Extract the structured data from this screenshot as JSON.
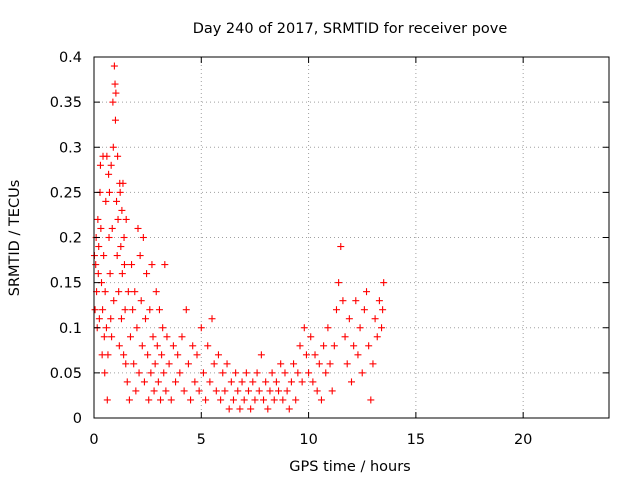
{
  "chart_data": {
    "type": "scatter",
    "title": "Day 240 of 2017, SRMTID for receiver pove",
    "xlabel": "GPS time / hours",
    "ylabel": "SRMTID / TECUs",
    "xlim": [
      0,
      24
    ],
    "ylim": [
      0,
      0.4
    ],
    "xticks": [
      0,
      5,
      10,
      15,
      20
    ],
    "xtick_labels": [
      "0",
      "5",
      "10",
      "15",
      "20"
    ],
    "yticks": [
      0,
      0.05,
      0.1,
      0.15,
      0.2,
      0.25,
      0.3,
      0.35,
      0.4
    ],
    "ytick_labels": [
      "0",
      "0.05",
      "0.1",
      "0.15",
      "0.2",
      "0.25",
      "0.3",
      "0.35",
      "0.4"
    ],
    "grid": true,
    "marker": "plus",
    "marker_color": "#ff0000",
    "series": [
      {
        "name": "SRMTID",
        "points": [
          [
            0.02,
            0.18
          ],
          [
            0.05,
            0.12
          ],
          [
            0.08,
            0.17
          ],
          [
            0.1,
            0.2
          ],
          [
            0.12,
            0.14
          ],
          [
            0.15,
            0.1
          ],
          [
            0.18,
            0.22
          ],
          [
            0.2,
            0.16
          ],
          [
            0.22,
            0.19
          ],
          [
            0.25,
            0.11
          ],
          [
            0.28,
            0.25
          ],
          [
            0.3,
            0.28
          ],
          [
            0.32,
            0.21
          ],
          [
            0.35,
            0.15
          ],
          [
            0.38,
            0.07
          ],
          [
            0.4,
            0.12
          ],
          [
            0.42,
            0.29
          ],
          [
            0.45,
            0.18
          ],
          [
            0.48,
            0.09
          ],
          [
            0.5,
            0.05
          ],
          [
            0.52,
            0.14
          ],
          [
            0.55,
            0.24
          ],
          [
            0.58,
            0.1
          ],
          [
            0.6,
            0.29
          ],
          [
            0.62,
            0.02
          ],
          [
            0.65,
            0.07
          ],
          [
            0.68,
            0.27
          ],
          [
            0.7,
            0.2
          ],
          [
            0.72,
            0.25
          ],
          [
            0.75,
            0.16
          ],
          [
            0.78,
            0.11
          ],
          [
            0.8,
            0.28
          ],
          [
            0.82,
            0.09
          ],
          [
            0.85,
            0.21
          ],
          [
            0.88,
            0.35
          ],
          [
            0.9,
            0.3
          ],
          [
            0.92,
            0.13
          ],
          [
            0.95,
            0.39
          ],
          [
            0.98,
            0.37
          ],
          [
            1.0,
            0.33
          ],
          [
            1.02,
            0.36
          ],
          [
            1.05,
            0.24
          ],
          [
            1.08,
            0.18
          ],
          [
            1.1,
            0.29
          ],
          [
            1.12,
            0.22
          ],
          [
            1.15,
            0.14
          ],
          [
            1.18,
            0.08
          ],
          [
            1.2,
            0.26
          ],
          [
            1.22,
            0.25
          ],
          [
            1.25,
            0.19
          ],
          [
            1.28,
            0.11
          ],
          [
            1.3,
            0.23
          ],
          [
            1.32,
            0.16
          ],
          [
            1.35,
            0.26
          ],
          [
            1.38,
            0.07
          ],
          [
            1.4,
            0.2
          ],
          [
            1.42,
            0.17
          ],
          [
            1.45,
            0.12
          ],
          [
            1.48,
            0.06
          ],
          [
            1.5,
            0.22
          ],
          [
            1.55,
            0.04
          ],
          [
            1.6,
            0.14
          ],
          [
            1.65,
            0.02
          ],
          [
            1.7,
            0.09
          ],
          [
            1.75,
            0.17
          ],
          [
            1.8,
            0.12
          ],
          [
            1.85,
            0.06
          ],
          [
            1.9,
            0.14
          ],
          [
            1.95,
            0.03
          ],
          [
            2.0,
            0.1
          ],
          [
            2.05,
            0.21
          ],
          [
            2.1,
            0.05
          ],
          [
            2.15,
            0.18
          ],
          [
            2.2,
            0.13
          ],
          [
            2.25,
            0.08
          ],
          [
            2.3,
            0.2
          ],
          [
            2.35,
            0.04
          ],
          [
            2.4,
            0.11
          ],
          [
            2.45,
            0.16
          ],
          [
            2.5,
            0.07
          ],
          [
            2.55,
            0.02
          ],
          [
            2.6,
            0.12
          ],
          [
            2.65,
            0.05
          ],
          [
            2.7,
            0.17
          ],
          [
            2.75,
            0.09
          ],
          [
            2.8,
            0.03
          ],
          [
            2.85,
            0.06
          ],
          [
            2.9,
            0.14
          ],
          [
            2.95,
            0.08
          ],
          [
            3.0,
            0.04
          ],
          [
            3.05,
            0.12
          ],
          [
            3.1,
            0.02
          ],
          [
            3.15,
            0.07
          ],
          [
            3.2,
            0.1
          ],
          [
            3.25,
            0.05
          ],
          [
            3.3,
            0.17
          ],
          [
            3.35,
            0.03
          ],
          [
            3.4,
            0.09
          ],
          [
            3.5,
            0.06
          ],
          [
            3.6,
            0.02
          ],
          [
            3.7,
            0.08
          ],
          [
            3.8,
            0.04
          ],
          [
            3.9,
            0.07
          ],
          [
            4.0,
            0.05
          ],
          [
            4.1,
            0.09
          ],
          [
            4.2,
            0.03
          ],
          [
            4.3,
            0.12
          ],
          [
            4.4,
            0.06
          ],
          [
            4.5,
            0.02
          ],
          [
            4.6,
            0.08
          ],
          [
            4.7,
            0.04
          ],
          [
            4.8,
            0.07
          ],
          [
            4.9,
            0.03
          ],
          [
            5.0,
            0.1
          ],
          [
            5.1,
            0.05
          ],
          [
            5.2,
            0.02
          ],
          [
            5.3,
            0.08
          ],
          [
            5.4,
            0.04
          ],
          [
            5.5,
            0.11
          ],
          [
            5.6,
            0.06
          ],
          [
            5.7,
            0.03
          ],
          [
            5.8,
            0.07
          ],
          [
            5.9,
            0.02
          ],
          [
            6.0,
            0.05
          ],
          [
            6.1,
            0.03
          ],
          [
            6.2,
            0.06
          ],
          [
            6.3,
            0.01
          ],
          [
            6.4,
            0.04
          ],
          [
            6.5,
            0.02
          ],
          [
            6.6,
            0.05
          ],
          [
            6.7,
            0.03
          ],
          [
            6.8,
            0.01
          ],
          [
            6.9,
            0.04
          ],
          [
            7.0,
            0.02
          ],
          [
            7.1,
            0.05
          ],
          [
            7.2,
            0.03
          ],
          [
            7.3,
            0.01
          ],
          [
            7.4,
            0.04
          ],
          [
            7.5,
            0.02
          ],
          [
            7.6,
            0.05
          ],
          [
            7.7,
            0.03
          ],
          [
            7.8,
            0.07
          ],
          [
            7.9,
            0.02
          ],
          [
            8.0,
            0.04
          ],
          [
            8.1,
            0.01
          ],
          [
            8.2,
            0.03
          ],
          [
            8.3,
            0.05
          ],
          [
            8.4,
            0.02
          ],
          [
            8.5,
            0.04
          ],
          [
            8.6,
            0.03
          ],
          [
            8.7,
            0.06
          ],
          [
            8.8,
            0.02
          ],
          [
            8.9,
            0.05
          ],
          [
            9.0,
            0.03
          ],
          [
            9.1,
            0.01
          ],
          [
            9.2,
            0.04
          ],
          [
            9.3,
            0.06
          ],
          [
            9.4,
            0.02
          ],
          [
            9.5,
            0.05
          ],
          [
            9.6,
            0.08
          ],
          [
            9.7,
            0.04
          ],
          [
            9.8,
            0.1
          ],
          [
            9.9,
            0.07
          ],
          [
            10.0,
            0.05
          ],
          [
            10.1,
            0.09
          ],
          [
            10.2,
            0.04
          ],
          [
            10.3,
            0.07
          ],
          [
            10.4,
            0.03
          ],
          [
            10.5,
            0.06
          ],
          [
            10.6,
            0.02
          ],
          [
            10.7,
            0.08
          ],
          [
            10.8,
            0.05
          ],
          [
            10.9,
            0.1
          ],
          [
            11.0,
            0.06
          ],
          [
            11.1,
            0.03
          ],
          [
            11.2,
            0.08
          ],
          [
            11.3,
            0.12
          ],
          [
            11.4,
            0.15
          ],
          [
            11.5,
            0.19
          ],
          [
            11.6,
            0.13
          ],
          [
            11.7,
            0.09
          ],
          [
            11.8,
            0.06
          ],
          [
            11.9,
            0.11
          ],
          [
            12.0,
            0.04
          ],
          [
            12.1,
            0.08
          ],
          [
            12.2,
            0.13
          ],
          [
            12.3,
            0.07
          ],
          [
            12.4,
            0.1
          ],
          [
            12.5,
            0.05
          ],
          [
            12.6,
            0.12
          ],
          [
            12.7,
            0.14
          ],
          [
            12.8,
            0.08
          ],
          [
            12.9,
            0.02
          ],
          [
            13.0,
            0.06
          ],
          [
            13.1,
            0.11
          ],
          [
            13.2,
            0.09
          ],
          [
            13.3,
            0.13
          ],
          [
            13.4,
            0.1
          ],
          [
            13.5,
            0.15
          ],
          [
            13.45,
            0.12
          ]
        ]
      }
    ]
  }
}
